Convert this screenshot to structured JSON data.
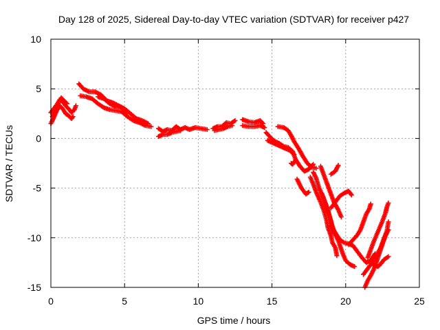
{
  "colors": {
    "series": "#ff0000",
    "grid": "#a0a0a0",
    "axis": "#000000",
    "background": "#ffffff"
  },
  "chart_data": {
    "type": "scatter",
    "title": "Day 128 of 2025, Sidereal Day-to-day VTEC variation (SDTVAR) for receiver p427",
    "xlabel": "GPS time / hours",
    "ylabel": "SDTVAR / TECUs",
    "xlim": [
      0,
      25
    ],
    "ylim": [
      -15,
      10
    ],
    "xticks": [
      0,
      5,
      10,
      15,
      20,
      25
    ],
    "yticks": [
      -15,
      -10,
      -5,
      0,
      5,
      10
    ],
    "grid": true,
    "marker": "+",
    "series": [
      {
        "name": "p427",
        "color": "#ff0000",
        "tracks": [
          {
            "points": [
              [
                0.0,
                2.6
              ],
              [
                0.2,
                3.0
              ],
              [
                0.4,
                3.4
              ],
              [
                0.6,
                3.9
              ],
              [
                0.8,
                3.7
              ],
              [
                1.0,
                3.3
              ],
              [
                1.2,
                3.0
              ],
              [
                1.4,
                2.6
              ],
              [
                1.6,
                2.9
              ],
              [
                1.7,
                3.3
              ]
            ]
          },
          {
            "points": [
              [
                0.0,
                1.5
              ],
              [
                0.2,
                2.1
              ],
              [
                0.4,
                2.8
              ],
              [
                0.6,
                3.3
              ],
              [
                0.8,
                3.0
              ],
              [
                1.0,
                2.5
              ],
              [
                1.2,
                2.3
              ],
              [
                1.4,
                2.0
              ],
              [
                1.5,
                2.2
              ]
            ]
          },
          {
            "points": [
              [
                0.1,
                2.2
              ],
              [
                0.3,
                2.6
              ],
              [
                0.5,
                3.5
              ],
              [
                0.7,
                4.1
              ],
              [
                0.9,
                3.8
              ],
              [
                1.1,
                3.5
              ]
            ]
          },
          {
            "points": [
              [
                1.9,
                5.5
              ],
              [
                2.2,
                5.0
              ],
              [
                2.6,
                4.7
              ],
              [
                3.0,
                4.7
              ],
              [
                3.4,
                4.4
              ],
              [
                3.8,
                3.8
              ],
              [
                4.2,
                3.6
              ],
              [
                4.6,
                3.3
              ],
              [
                5.0,
                3.0
              ],
              [
                5.4,
                2.5
              ],
              [
                5.8,
                2.0
              ],
              [
                6.2,
                1.8
              ],
              [
                6.6,
                1.5
              ]
            ]
          },
          {
            "points": [
              [
                2.0,
                4.3
              ],
              [
                2.4,
                4.2
              ],
              [
                2.8,
                4.0
              ],
              [
                3.2,
                3.5
              ],
              [
                3.6,
                3.1
              ],
              [
                4.0,
                2.9
              ],
              [
                4.4,
                2.8
              ],
              [
                4.8,
                2.7
              ],
              [
                5.2,
                2.2
              ],
              [
                5.6,
                1.8
              ],
              [
                6.0,
                1.6
              ],
              [
                6.4,
                1.3
              ],
              [
                6.8,
                1.2
              ]
            ]
          },
          {
            "points": [
              [
                3.2,
                4.2
              ],
              [
                3.6,
                4.0
              ],
              [
                4.0,
                3.5
              ],
              [
                4.4,
                3.2
              ],
              [
                4.8,
                3.1
              ],
              [
                5.2,
                2.6
              ]
            ]
          },
          {
            "points": [
              [
                7.3,
                1.0
              ],
              [
                7.6,
                0.7
              ],
              [
                7.9,
                0.9
              ],
              [
                8.2,
                0.8
              ],
              [
                8.5,
                1.2
              ],
              [
                8.8,
                0.9
              ],
              [
                9.1,
                1.1
              ],
              [
                9.4,
                0.9
              ],
              [
                9.8,
                1.1
              ],
              [
                10.2,
                1.0
              ],
              [
                10.6,
                0.9
              ]
            ]
          },
          {
            "points": [
              [
                7.3,
                0.2
              ],
              [
                7.6,
                0.4
              ],
              [
                7.9,
                0.4
              ],
              [
                8.2,
                0.6
              ],
              [
                8.5,
                0.7
              ],
              [
                8.8,
                0.8
              ]
            ]
          },
          {
            "points": [
              [
                11.0,
                1.0
              ],
              [
                11.3,
                1.2
              ],
              [
                11.6,
                1.2
              ],
              [
                11.9,
                1.6
              ],
              [
                12.2,
                1.5
              ],
              [
                12.5,
                1.8
              ]
            ]
          },
          {
            "points": [
              [
                11.1,
                0.8
              ],
              [
                11.4,
                0.9
              ],
              [
                11.7,
                1.0
              ],
              [
                12.0,
                1.2
              ],
              [
                12.3,
                1.3
              ]
            ]
          },
          {
            "points": [
              [
                13.0,
                1.9
              ],
              [
                13.4,
                1.7
              ],
              [
                13.8,
                1.6
              ],
              [
                14.2,
                1.8
              ],
              [
                14.4,
                1.5
              ]
            ]
          },
          {
            "points": [
              [
                13.0,
                1.3
              ],
              [
                13.4,
                1.2
              ],
              [
                13.8,
                1.2
              ],
              [
                14.2,
                1.3
              ],
              [
                14.5,
                1.1
              ]
            ]
          },
          {
            "points": [
              [
                14.6,
                0.6
              ],
              [
                14.9,
                0.1
              ],
              [
                15.2,
                -0.3
              ],
              [
                15.5,
                -0.5
              ],
              [
                15.8,
                -0.8
              ],
              [
                16.1,
                -0.9
              ],
              [
                16.4,
                -1.3
              ],
              [
                16.6,
                -2.1
              ],
              [
                16.9,
                -2.8
              ],
              [
                17.2,
                -3.3
              ],
              [
                17.5,
                -3.1
              ],
              [
                17.8,
                -2.6
              ]
            ]
          },
          {
            "points": [
              [
                14.7,
                -0.2
              ],
              [
                15.0,
                -0.4
              ],
              [
                15.3,
                -0.6
              ],
              [
                15.6,
                -0.8
              ],
              [
                15.9,
                -1.0
              ],
              [
                16.2,
                -1.2
              ],
              [
                16.5,
                -1.6
              ]
            ]
          },
          {
            "points": [
              [
                15.4,
                1.2
              ],
              [
                15.8,
                1.1
              ],
              [
                16.1,
                0.8
              ],
              [
                16.3,
                0.3
              ],
              [
                16.5,
                -0.3
              ],
              [
                16.8,
                -1.0
              ],
              [
                17.1,
                -1.8
              ],
              [
                17.4,
                -2.5
              ],
              [
                17.7,
                -2.9
              ],
              [
                18.0,
                -3.0
              ]
            ]
          },
          {
            "points": [
              [
                16.7,
                -4.1
              ],
              [
                17.0,
                -5.0
              ],
              [
                17.3,
                -5.6
              ],
              [
                17.5,
                -5.4
              ]
            ]
          },
          {
            "points": [
              [
                17.8,
                -3.4
              ],
              [
                18.0,
                -4.0
              ],
              [
                18.2,
                -5.0
              ],
              [
                18.5,
                -6.0
              ],
              [
                18.8,
                -7.2
              ],
              [
                19.0,
                -8.4
              ],
              [
                19.2,
                -9.3
              ],
              [
                19.5,
                -10.3
              ],
              [
                19.8,
                -11.6
              ],
              [
                20.0,
                -12.3
              ],
              [
                20.3,
                -12.7
              ],
              [
                20.6,
                -12.9
              ]
            ]
          },
          {
            "points": [
              [
                17.6,
                -3.9
              ],
              [
                17.8,
                -4.6
              ],
              [
                18.0,
                -5.4
              ],
              [
                18.3,
                -6.4
              ],
              [
                18.5,
                -7.2
              ],
              [
                18.7,
                -8.2
              ],
              [
                18.8,
                -9.0
              ],
              [
                19.0,
                -9.8
              ],
              [
                19.1,
                -10.5
              ],
              [
                19.3,
                -11.0
              ],
              [
                19.4,
                -11.8
              ]
            ]
          },
          {
            "points": [
              [
                18.3,
                -2.8
              ],
              [
                18.6,
                -4.0
              ],
              [
                18.9,
                -5.2
              ],
              [
                19.2,
                -6.4
              ],
              [
                19.5,
                -7.2
              ],
              [
                19.7,
                -7.9
              ]
            ]
          },
          {
            "points": [
              [
                19.0,
                -7.0
              ],
              [
                19.3,
                -6.4
              ],
              [
                19.6,
                -5.8
              ],
              [
                19.9,
                -5.5
              ],
              [
                20.2,
                -5.3
              ],
              [
                20.4,
                -5.7
              ]
            ]
          },
          {
            "points": [
              [
                19.0,
                -8.8
              ],
              [
                19.3,
                -9.5
              ],
              [
                19.6,
                -10.2
              ],
              [
                19.9,
                -10.5
              ],
              [
                20.2,
                -10.6
              ],
              [
                20.5,
                -10.8
              ],
              [
                20.8,
                -11.4
              ],
              [
                21.1,
                -12.0
              ],
              [
                21.4,
                -12.5
              ],
              [
                21.7,
                -12.3
              ],
              [
                22.0,
                -11.6
              ]
            ]
          },
          {
            "points": [
              [
                18.4,
                -5.6
              ],
              [
                18.6,
                -6.5
              ],
              [
                18.8,
                -7.4
              ],
              [
                19.0,
                -8.3
              ],
              [
                19.1,
                -9.0
              ],
              [
                19.2,
                -9.6
              ]
            ]
          },
          {
            "points": [
              [
                19.5,
                -2.7
              ],
              [
                19.3,
                -3.3
              ],
              [
                19.0,
                -3.6
              ]
            ]
          },
          {
            "points": [
              [
                20.2,
                -10.7
              ],
              [
                20.5,
                -10.2
              ],
              [
                20.8,
                -9.7
              ],
              [
                21.0,
                -9.2
              ],
              [
                21.2,
                -8.4
              ],
              [
                21.4,
                -7.6
              ],
              [
                21.6,
                -7.1
              ],
              [
                21.7,
                -6.6
              ]
            ]
          },
          {
            "points": [
              [
                21.3,
                -15.0
              ],
              [
                21.5,
                -14.3
              ],
              [
                21.7,
                -13.8
              ],
              [
                21.9,
                -13.2
              ],
              [
                22.1,
                -12.4
              ],
              [
                22.3,
                -11.5
              ],
              [
                22.5,
                -10.6
              ],
              [
                22.7,
                -9.8
              ],
              [
                22.9,
                -9.2
              ]
            ]
          },
          {
            "points": [
              [
                21.2,
                -13.7
              ],
              [
                21.5,
                -13.1
              ],
              [
                21.8,
                -12.5
              ],
              [
                22.1,
                -11.8
              ],
              [
                22.4,
                -10.9
              ],
              [
                22.6,
                -10.1
              ],
              [
                22.8,
                -9.3
              ],
              [
                22.9,
                -8.4
              ]
            ]
          },
          {
            "points": [
              [
                21.5,
                -12.0
              ],
              [
                21.7,
                -11.2
              ],
              [
                21.9,
                -10.4
              ],
              [
                22.1,
                -9.7
              ],
              [
                22.3,
                -9.0
              ],
              [
                22.5,
                -8.3
              ],
              [
                22.7,
                -7.5
              ],
              [
                22.8,
                -6.9
              ],
              [
                22.9,
                -6.5
              ]
            ]
          },
          {
            "points": [
              [
                21.8,
                -12.6
              ],
              [
                22.0,
                -12.8
              ],
              [
                22.2,
                -12.9
              ],
              [
                22.4,
                -12.6
              ],
              [
                22.6,
                -12.2
              ],
              [
                22.9,
                -11.9
              ]
            ]
          },
          {
            "points": [
              [
                16.6,
                -2.2
              ],
              [
                16.4,
                -2.6
              ],
              [
                16.3,
                -2.5
              ]
            ]
          }
        ]
      }
    ]
  }
}
